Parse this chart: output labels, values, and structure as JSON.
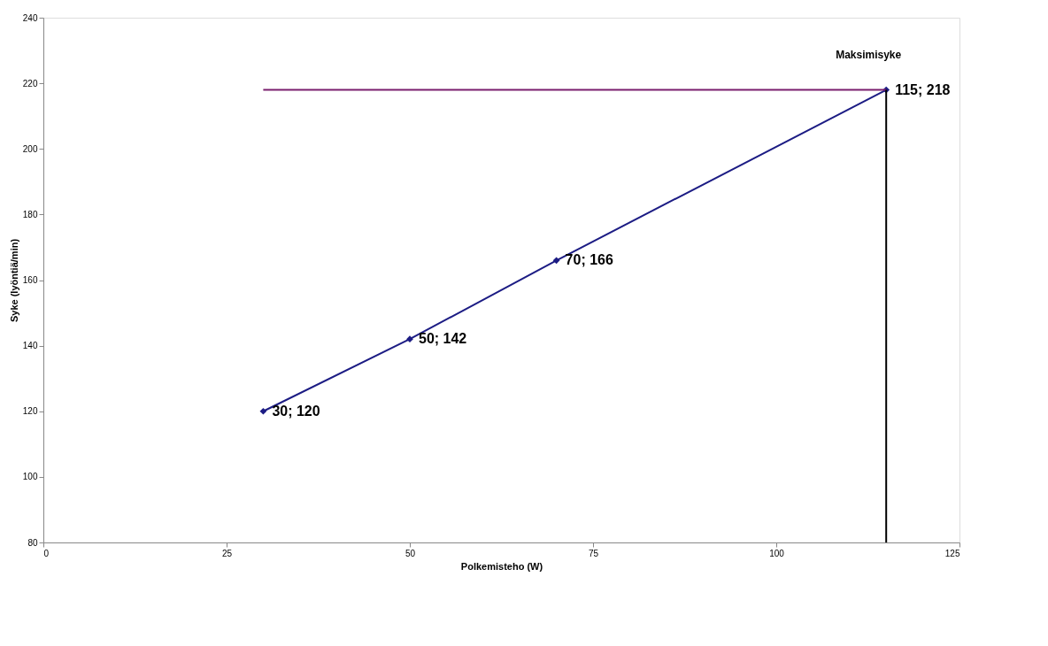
{
  "chart_data": {
    "type": "line",
    "xlabel": "Polkemisteho (W)",
    "ylabel": "Syke (lyöntiä/min)",
    "xlim": [
      0,
      125
    ],
    "xticks": [
      0,
      25,
      50,
      75,
      100,
      125
    ],
    "ylim": [
      80,
      240
    ],
    "yticks": [
      80,
      100,
      120,
      140,
      160,
      180,
      200,
      220,
      240
    ],
    "grid": false,
    "legend": false,
    "series": [
      {
        "color": "#1c1c84",
        "marker": "diamond",
        "x": [
          30,
          50,
          70,
          115
        ],
        "values": [
          120,
          142,
          166,
          218
        ],
        "value_labels": [
          "30; 120",
          "50; 142",
          "70; 166",
          "115; 218"
        ]
      },
      {
        "name": "Maksimisyke",
        "color": "#7a1e6e",
        "marker": "none",
        "x": [
          30,
          115
        ],
        "values": [
          218,
          218
        ]
      },
      {
        "color": "#000000",
        "marker": "none",
        "x": [
          115,
          115
        ],
        "values": [
          80,
          218
        ]
      }
    ]
  }
}
